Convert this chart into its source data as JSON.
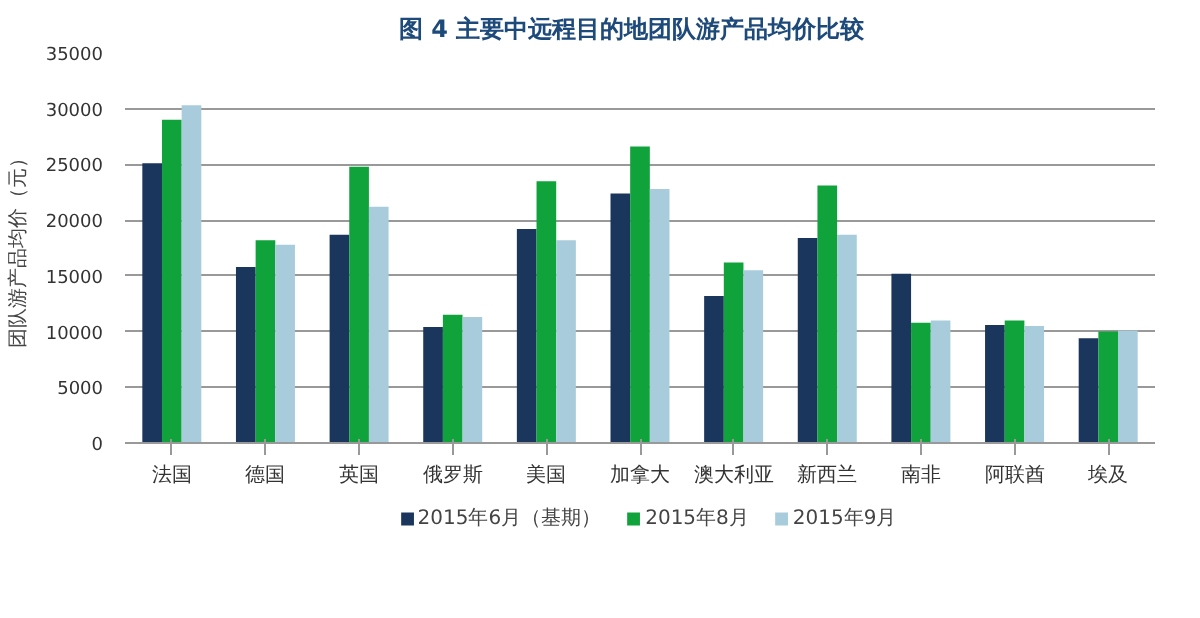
{
  "chart_data": {
    "type": "bar",
    "title": "图 4   主要中远程目的地团队游产品均价比较",
    "ylabel": "团队游产品均价（元）",
    "categories": [
      "法国",
      "德国",
      "英国",
      "俄罗斯",
      "美国",
      "加拿大",
      "澳大利亚",
      "新西兰",
      "南非",
      "阿联酋",
      "埃及"
    ],
    "series": [
      {
        "name": "2015年6月（基期）",
        "color": "#1b365d",
        "values": [
          25100,
          15800,
          18700,
          10400,
          19200,
          22400,
          13200,
          18400,
          15200,
          10600,
          9400
        ]
      },
      {
        "name": "2015年8月",
        "color": "#10a33c",
        "values": [
          29000,
          18200,
          24800,
          11500,
          23500,
          26600,
          16200,
          23100,
          10800,
          11000,
          10000
        ]
      },
      {
        "name": "2015年9月",
        "color": "#a8ccdc",
        "values": [
          30300,
          17800,
          21200,
          11300,
          18200,
          22800,
          15500,
          18700,
          11000,
          10500,
          10100
        ]
      }
    ],
    "ylim": [
      0,
      35000
    ],
    "yticks": [
      0,
      5000,
      10000,
      15000,
      20000,
      25000,
      30000,
      35000
    ],
    "grid": "y",
    "legend": "bottom"
  }
}
